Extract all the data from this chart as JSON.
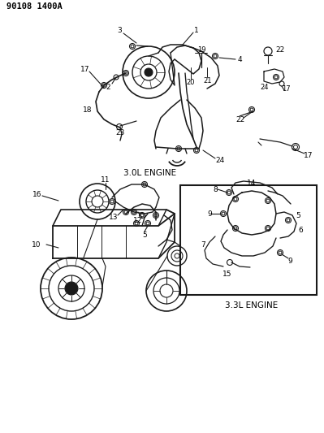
{
  "title": "90108 1400A",
  "bg": "#ffffff",
  "dc": "#1a1a1a",
  "top_label": "3.0L ENGINE",
  "bot_label": "3.3L ENGINE",
  "fig_w": 3.99,
  "fig_h": 5.33,
  "dpi": 100
}
